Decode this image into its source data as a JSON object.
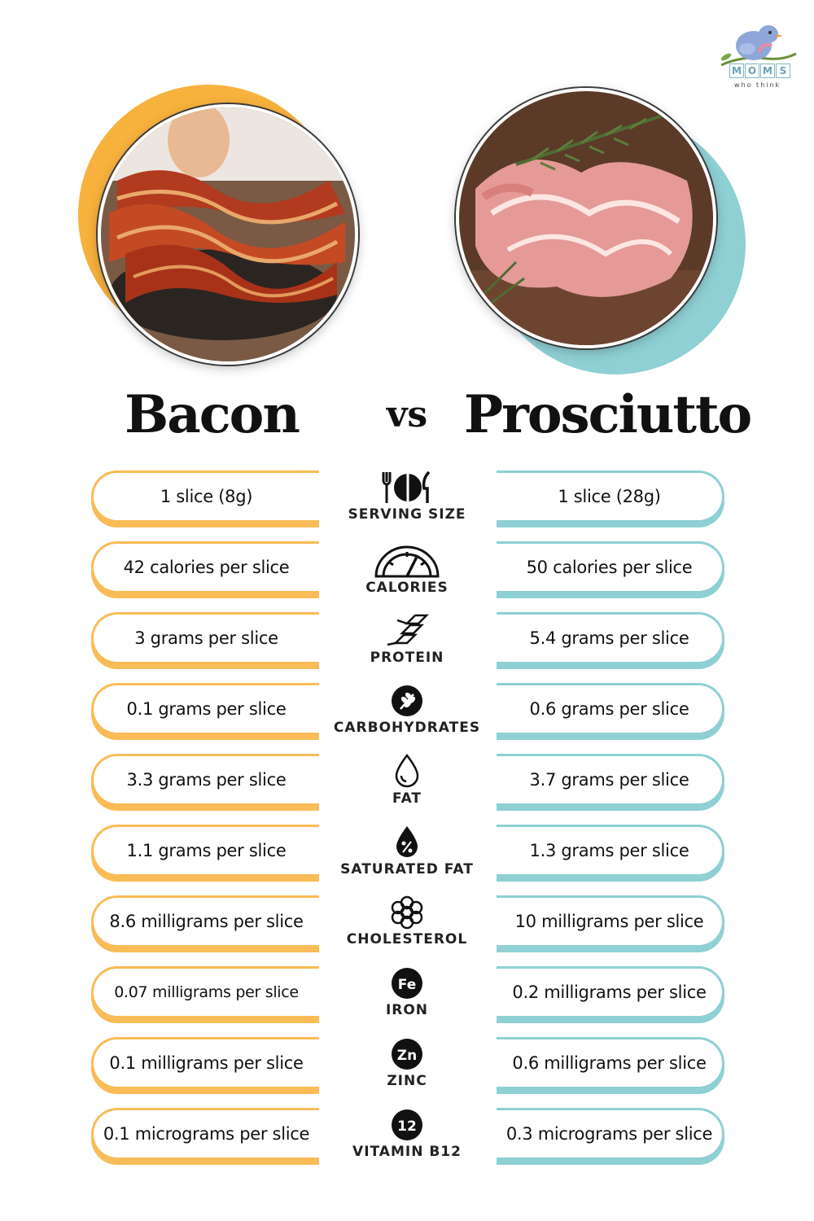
{
  "brand": {
    "letters": [
      "M",
      "O",
      "M",
      "S"
    ],
    "tagline": "who think"
  },
  "left_item": {
    "name": "Bacon",
    "accent_color": "#f9bc57"
  },
  "right_item": {
    "name": "Prosciutto",
    "accent_color": "#8ed0d4"
  },
  "vs_label": "vs",
  "rows": [
    {
      "label": "SERVING SIZE",
      "icon": "utensils-plate-icon",
      "left": "1 slice (8g)",
      "right": "1 slice (28g)"
    },
    {
      "label": "CALORIES",
      "icon": "gauge-icon",
      "left": "42 calories per slice",
      "right": "50 calories per slice"
    },
    {
      "label": "PROTEIN",
      "icon": "protein-strand-icon",
      "left": "3 grams per slice",
      "right": "5.4 grams per slice"
    },
    {
      "label": "CARBOHYDRATES",
      "icon": "wheat-icon",
      "left": "0.1 grams per slice",
      "right": "0.6 grams per slice"
    },
    {
      "label": "FAT",
      "icon": "drop-icon",
      "left": "3.3 grams per slice",
      "right": "3.7 grams per slice"
    },
    {
      "label": "SATURATED FAT",
      "icon": "percent-drop-icon",
      "left": "1.1 grams per slice",
      "right": "1.3 grams per slice"
    },
    {
      "label": "CHOLESTEROL",
      "icon": "molecule-icon",
      "left": "8.6 milligrams per slice",
      "right": "10 milligrams per slice"
    },
    {
      "label": "IRON",
      "icon": "fe-icon",
      "icon_text": "Fe",
      "left": "0.07 milligrams per slice",
      "right": "0.2 milligrams per slice"
    },
    {
      "label": "ZINC",
      "icon": "zn-icon",
      "icon_text": "Zn",
      "left": "0.1 milligrams per slice",
      "right": "0.6 milligrams per slice"
    },
    {
      "label": "VITAMIN B12",
      "icon": "b12-icon",
      "icon_text": "12",
      "left": "0.1 micrograms per slice",
      "right": "0.3 micrograms per slice"
    }
  ]
}
